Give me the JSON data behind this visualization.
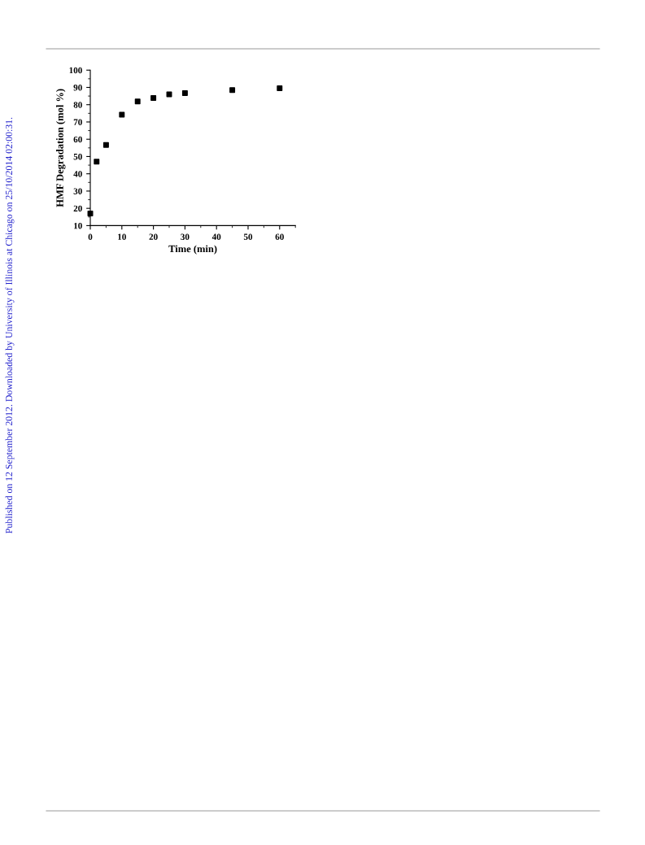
{
  "chart_data": {
    "type": "scatter",
    "xlabel": "Time (min)",
    "ylabel": "HMF Degradation (mol %)",
    "x": [
      0,
      2,
      5,
      10,
      15,
      20,
      25,
      30,
      45,
      60
    ],
    "values": [
      17,
      47,
      56.7,
      74.2,
      81.9,
      83.9,
      86,
      86.7,
      88.5,
      89.5
    ],
    "color": "#000000",
    "marker": "square",
    "xlim": [
      0,
      65
    ],
    "xticks": [
      0,
      10,
      20,
      30,
      40,
      50,
      60
    ],
    "ylim": [
      10,
      100
    ],
    "yticks": [
      10,
      20,
      30,
      40,
      50,
      60,
      70,
      80,
      90,
      100
    ],
    "grid": false,
    "legend": false,
    "annotations": [
      "Published on 12 September 2012. Downloaded by University of Illinois at Chicago on 25/10/2014 02:00:31."
    ]
  }
}
